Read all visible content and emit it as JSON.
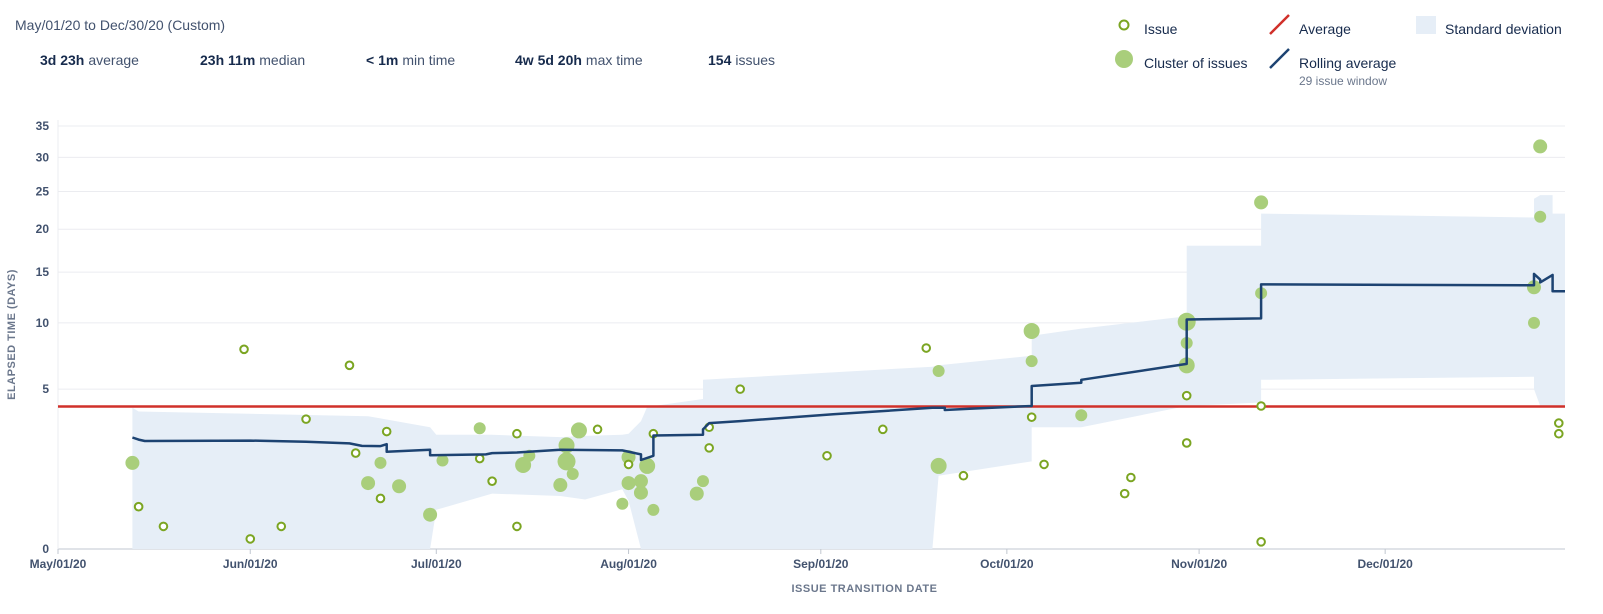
{
  "header": {
    "date_range": "May/01/20 to Dec/30/20 (Custom)",
    "stats": [
      {
        "value": "3d 23h",
        "label": "average"
      },
      {
        "value": "23h 11m",
        "label": "median"
      },
      {
        "value": "< 1m",
        "label": "min time"
      },
      {
        "value": "4w 5d 20h",
        "label": "max time"
      },
      {
        "value": "154",
        "label": "issues"
      }
    ]
  },
  "legend": {
    "issue": "Issue",
    "cluster": "Cluster of issues",
    "average": "Average",
    "rolling": "Rolling average",
    "rolling_sub": "29 issue window",
    "stddev": "Standard deviation"
  },
  "colors": {
    "issue": "#7ba522",
    "cluster": "#a9ce7b",
    "average": "#d0302a",
    "rolling": "#1d4372",
    "stddev": "#e6eef7",
    "grid": "#ebecf0"
  },
  "chart_data": {
    "type": "scatter",
    "xlabel": "ISSUE TRANSITION DATE",
    "ylabel": "ELAPSED TIME (DAYS)",
    "x_ticks": [
      "May/01/20",
      "Jun/01/20",
      "Jul/01/20",
      "Aug/01/20",
      "Sep/01/20",
      "Oct/01/20",
      "Nov/01/20",
      "Dec/01/20"
    ],
    "y_ticks": [
      0,
      5,
      10,
      15,
      20,
      25,
      30,
      35
    ],
    "y_scale": "sqrt",
    "xlim": [
      "2020-05-01",
      "2020-12-30"
    ],
    "ylim": [
      0,
      36
    ],
    "average": 3.97,
    "series": [
      {
        "name": "Issue",
        "kind": "issue",
        "points": [
          [
            "2020-05-14",
            0.35
          ],
          [
            "2020-05-18",
            0.1
          ],
          [
            "2020-05-31",
            7.8
          ],
          [
            "2020-06-01",
            0.02
          ],
          [
            "2020-06-06",
            0.1
          ],
          [
            "2020-06-10",
            3.3
          ],
          [
            "2020-06-17",
            6.6
          ],
          [
            "2020-06-18",
            1.8
          ],
          [
            "2020-06-22",
            0.5
          ],
          [
            "2020-06-23",
            2.7
          ],
          [
            "2020-07-08",
            1.6
          ],
          [
            "2020-07-10",
            0.9
          ],
          [
            "2020-07-14",
            2.6
          ],
          [
            "2020-07-14",
            0.1
          ],
          [
            "2020-07-27",
            2.8
          ],
          [
            "2020-08-01",
            1.4
          ],
          [
            "2020-08-05",
            2.6
          ],
          [
            "2020-08-14",
            2.9
          ],
          [
            "2020-08-14",
            2.0
          ],
          [
            "2020-08-19",
            5.0
          ],
          [
            "2020-09-02",
            1.7
          ],
          [
            "2020-09-11",
            2.8
          ],
          [
            "2020-09-18",
            7.9
          ],
          [
            "2020-09-24",
            1.05
          ],
          [
            "2020-10-05",
            3.4
          ],
          [
            "2020-10-07",
            1.4
          ],
          [
            "2020-10-20",
            0.6
          ],
          [
            "2020-10-21",
            1.0
          ],
          [
            "2020-10-30",
            4.6
          ],
          [
            "2020-10-30",
            2.2
          ],
          [
            "2020-11-11",
            4.0
          ],
          [
            "2020-11-11",
            0.01
          ],
          [
            "2020-12-29",
            3.1
          ],
          [
            "2020-12-29",
            2.6
          ]
        ]
      },
      {
        "name": "Cluster of issues",
        "kind": "cluster",
        "points": [
          [
            "2020-05-13",
            1.45,
            7
          ],
          [
            "2020-06-20",
            0.85,
            7
          ],
          [
            "2020-06-25",
            0.77,
            7
          ],
          [
            "2020-06-22",
            1.45,
            6
          ],
          [
            "2020-06-30",
            0.23,
            7
          ],
          [
            "2020-07-02",
            1.53,
            6
          ],
          [
            "2020-07-08",
            2.85,
            6
          ],
          [
            "2020-07-15",
            1.38,
            8
          ],
          [
            "2020-07-16",
            1.7,
            6
          ],
          [
            "2020-07-21",
            0.8,
            7
          ],
          [
            "2020-07-22",
            2.1,
            8
          ],
          [
            "2020-07-22",
            1.5,
            9
          ],
          [
            "2020-07-23",
            1.1,
            6
          ],
          [
            "2020-07-24",
            2.75,
            8
          ],
          [
            "2020-07-31",
            0.4,
            6
          ],
          [
            "2020-08-01",
            0.85,
            7
          ],
          [
            "2020-08-01",
            1.65,
            7
          ],
          [
            "2020-08-03",
            0.62,
            7
          ],
          [
            "2020-08-03",
            0.9,
            7
          ],
          [
            "2020-08-04",
            1.35,
            8
          ],
          [
            "2020-08-05",
            0.3,
            6
          ],
          [
            "2020-08-12",
            0.6,
            7
          ],
          [
            "2020-08-13",
            0.9,
            6
          ],
          [
            "2020-09-20",
            6.2,
            6
          ],
          [
            "2020-09-20",
            1.35,
            8
          ],
          [
            "2020-10-05",
            9.3,
            8
          ],
          [
            "2020-10-05",
            6.9,
            6
          ],
          [
            "2020-10-13",
            3.5,
            6
          ],
          [
            "2020-10-30",
            10.1,
            9
          ],
          [
            "2020-10-30",
            8.3,
            6
          ],
          [
            "2020-10-30",
            6.6,
            8
          ],
          [
            "2020-11-11",
            12.8,
            6
          ],
          [
            "2020-11-11",
            23.5,
            7
          ],
          [
            "2020-12-25",
            10.0,
            6
          ],
          [
            "2020-12-25",
            13.4,
            7
          ],
          [
            "2020-12-26",
            21.6,
            6
          ],
          [
            "2020-12-26",
            31.7,
            7
          ]
        ]
      },
      {
        "name": "Rolling average",
        "kind": "rolling",
        "points": [
          [
            "2020-05-13",
            2.43
          ],
          [
            "2020-05-14",
            2.34
          ],
          [
            "2020-05-15",
            2.28
          ],
          [
            "2020-06-01",
            2.3
          ],
          [
            "2020-06-10",
            2.25
          ],
          [
            "2020-06-17",
            2.18
          ],
          [
            "2020-06-19",
            2.08
          ],
          [
            "2020-06-22",
            2.07
          ],
          [
            "2020-06-23",
            2.15
          ],
          [
            "2020-06-23",
            1.85
          ],
          [
            "2020-06-30",
            1.93
          ],
          [
            "2020-06-30",
            1.72
          ],
          [
            "2020-07-09",
            1.75
          ],
          [
            "2020-07-10",
            1.8
          ],
          [
            "2020-07-14",
            1.82
          ],
          [
            "2020-07-21",
            1.93
          ],
          [
            "2020-07-31",
            1.9
          ],
          [
            "2020-08-03",
            1.75
          ],
          [
            "2020-08-03",
            1.55
          ],
          [
            "2020-08-05",
            1.7
          ],
          [
            "2020-08-05",
            2.52
          ],
          [
            "2020-08-13",
            2.55
          ],
          [
            "2020-08-13",
            2.8
          ],
          [
            "2020-08-14",
            3.1
          ],
          [
            "2020-08-19",
            3.2
          ],
          [
            "2020-09-03",
            3.55
          ],
          [
            "2020-09-19",
            3.9
          ],
          [
            "2020-09-21",
            3.9
          ],
          [
            "2020-09-21",
            3.78
          ],
          [
            "2020-09-25",
            3.85
          ],
          [
            "2020-10-05",
            4.0
          ],
          [
            "2020-10-05",
            5.2
          ],
          [
            "2020-10-13",
            5.4
          ],
          [
            "2020-10-13",
            5.6
          ],
          [
            "2020-10-30",
            6.7
          ],
          [
            "2020-10-30",
            10.3
          ],
          [
            "2020-11-11",
            10.4
          ],
          [
            "2020-11-11",
            13.7
          ],
          [
            "2020-12-25",
            13.6
          ],
          [
            "2020-12-25",
            14.8
          ],
          [
            "2020-12-26",
            14.2
          ],
          [
            "2020-12-26",
            13.9
          ],
          [
            "2020-12-28",
            14.7
          ],
          [
            "2020-12-28",
            13.0
          ],
          [
            "2020-12-30",
            13.0
          ]
        ]
      },
      {
        "name": "Standard deviation",
        "kind": "band",
        "points": [
          [
            "2020-05-13",
            0,
            3.9
          ],
          [
            "2020-05-14",
            0,
            3.7
          ],
          [
            "2020-06-20",
            0,
            3.45
          ],
          [
            "2020-06-30",
            0,
            2.9
          ],
          [
            "2020-07-01",
            0.3,
            2.55
          ],
          [
            "2020-07-10",
            0.6,
            2.55
          ],
          [
            "2020-07-21",
            0.55,
            2.45
          ],
          [
            "2020-07-25",
            0.48,
            2.5
          ],
          [
            "2020-07-31",
            0.7,
            2.55
          ],
          [
            "2020-08-01",
            0.45,
            2.6
          ],
          [
            "2020-08-03",
            0,
            3.2
          ],
          [
            "2020-08-04",
            0,
            3.95
          ],
          [
            "2020-08-13",
            0,
            4.4
          ],
          [
            "2020-08-13",
            0,
            5.6
          ],
          [
            "2020-09-19",
            0,
            6.5
          ],
          [
            "2020-09-20",
            1.05,
            6.6
          ],
          [
            "2020-10-05",
            1.5,
            7.3
          ],
          [
            "2020-10-05",
            2.9,
            8.9
          ],
          [
            "2020-10-13",
            2.9,
            9.5
          ],
          [
            "2020-10-30",
            4.0,
            10.6
          ],
          [
            "2020-10-30",
            4.0,
            18.0
          ],
          [
            "2020-11-11",
            4.2,
            18.0
          ],
          [
            "2020-11-11",
            5.6,
            22.0
          ],
          [
            "2020-12-25",
            5.8,
            21.5
          ],
          [
            "2020-12-25",
            5.0,
            24.0
          ],
          [
            "2020-12-26",
            4.0,
            24.5
          ],
          [
            "2020-12-28",
            4.0,
            24.5
          ],
          [
            "2020-12-28",
            3.9,
            22.0
          ],
          [
            "2020-12-30",
            3.9,
            22.0
          ]
        ]
      }
    ]
  }
}
